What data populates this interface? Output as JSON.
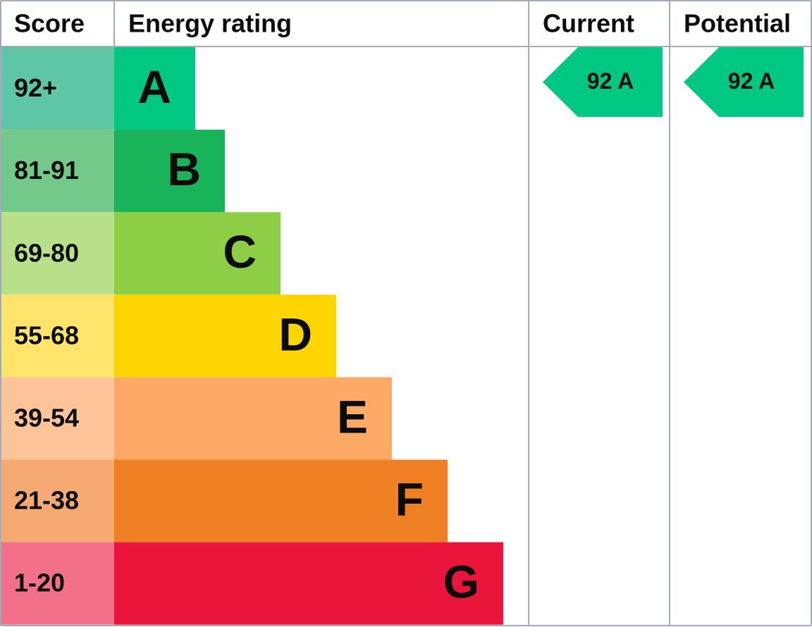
{
  "header": {
    "score": "Score",
    "rating": "Energy rating",
    "current": "Current",
    "potential": "Potential"
  },
  "bands": [
    {
      "score": "92+",
      "letter": "A",
      "color": "#00c781",
      "score_color": "#5ec6a4"
    },
    {
      "score": "81-91",
      "letter": "B",
      "color": "#19b459",
      "score_color": "#72c98a"
    },
    {
      "score": "69-80",
      "letter": "C",
      "color": "#8dce46",
      "score_color": "#b8e08a"
    },
    {
      "score": "55-68",
      "letter": "D",
      "color": "#ffd500",
      "score_color": "#fee46a"
    },
    {
      "score": "39-54",
      "letter": "E",
      "color": "#fcaa65",
      "score_color": "#fdc49a"
    },
    {
      "score": "21-38",
      "letter": "F",
      "color": "#ef8023",
      "score_color": "#f4aa72"
    },
    {
      "score": "1-20",
      "letter": "G",
      "color": "#e9153b",
      "score_color": "#f2708a"
    }
  ],
  "current": {
    "label": "92 A",
    "color": "#00c781"
  },
  "potential": {
    "label": "92 A",
    "color": "#00c781"
  }
}
